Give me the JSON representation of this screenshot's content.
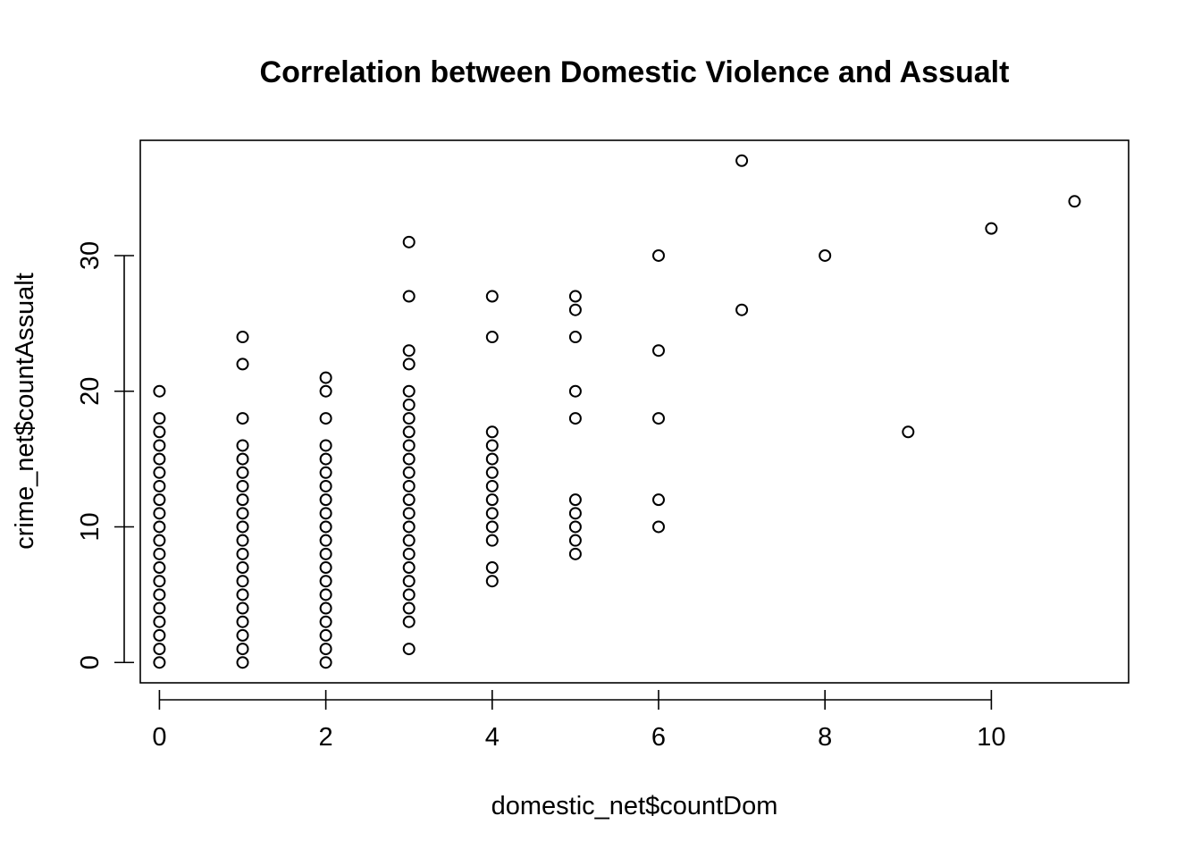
{
  "chart_data": {
    "type": "scatter",
    "title": "Correlation between Domestic Violence and Assualt",
    "xlabel": "domestic_net$countDom",
    "ylabel": "crime_net$countAssualt",
    "xlim": [
      -0.23,
      11.65
    ],
    "ylim": [
      -1.5,
      38.5
    ],
    "xticks": [
      0,
      2,
      4,
      6,
      8,
      10
    ],
    "yticks": [
      0,
      10,
      20,
      30
    ],
    "grid": false,
    "legend": "none",
    "marker": "open-circle",
    "points": [
      [
        0,
        0
      ],
      [
        0,
        1
      ],
      [
        0,
        2
      ],
      [
        0,
        3
      ],
      [
        0,
        4
      ],
      [
        0,
        5
      ],
      [
        0,
        6
      ],
      [
        0,
        7
      ],
      [
        0,
        8
      ],
      [
        0,
        9
      ],
      [
        0,
        10
      ],
      [
        0,
        11
      ],
      [
        0,
        12
      ],
      [
        0,
        13
      ],
      [
        0,
        14
      ],
      [
        0,
        15
      ],
      [
        0,
        16
      ],
      [
        0,
        17
      ],
      [
        0,
        18
      ],
      [
        0,
        20
      ],
      [
        1,
        0
      ],
      [
        1,
        1
      ],
      [
        1,
        2
      ],
      [
        1,
        3
      ],
      [
        1,
        4
      ],
      [
        1,
        5
      ],
      [
        1,
        6
      ],
      [
        1,
        7
      ],
      [
        1,
        8
      ],
      [
        1,
        9
      ],
      [
        1,
        10
      ],
      [
        1,
        11
      ],
      [
        1,
        12
      ],
      [
        1,
        13
      ],
      [
        1,
        14
      ],
      [
        1,
        15
      ],
      [
        1,
        16
      ],
      [
        1,
        18
      ],
      [
        1,
        22
      ],
      [
        1,
        24
      ],
      [
        2,
        0
      ],
      [
        2,
        1
      ],
      [
        2,
        2
      ],
      [
        2,
        3
      ],
      [
        2,
        4
      ],
      [
        2,
        5
      ],
      [
        2,
        6
      ],
      [
        2,
        7
      ],
      [
        2,
        8
      ],
      [
        2,
        9
      ],
      [
        2,
        10
      ],
      [
        2,
        11
      ],
      [
        2,
        12
      ],
      [
        2,
        13
      ],
      [
        2,
        14
      ],
      [
        2,
        15
      ],
      [
        2,
        16
      ],
      [
        2,
        18
      ],
      [
        2,
        20
      ],
      [
        2,
        21
      ],
      [
        3,
        1
      ],
      [
        3,
        3
      ],
      [
        3,
        4
      ],
      [
        3,
        5
      ],
      [
        3,
        6
      ],
      [
        3,
        7
      ],
      [
        3,
        8
      ],
      [
        3,
        9
      ],
      [
        3,
        10
      ],
      [
        3,
        11
      ],
      [
        3,
        12
      ],
      [
        3,
        13
      ],
      [
        3,
        14
      ],
      [
        3,
        15
      ],
      [
        3,
        16
      ],
      [
        3,
        17
      ],
      [
        3,
        18
      ],
      [
        3,
        19
      ],
      [
        3,
        20
      ],
      [
        3,
        22
      ],
      [
        3,
        23
      ],
      [
        3,
        27
      ],
      [
        3,
        31
      ],
      [
        4,
        6
      ],
      [
        4,
        7
      ],
      [
        4,
        9
      ],
      [
        4,
        10
      ],
      [
        4,
        11
      ],
      [
        4,
        12
      ],
      [
        4,
        13
      ],
      [
        4,
        14
      ],
      [
        4,
        15
      ],
      [
        4,
        16
      ],
      [
        4,
        17
      ],
      [
        4,
        24
      ],
      [
        4,
        27
      ],
      [
        5,
        8
      ],
      [
        5,
        9
      ],
      [
        5,
        10
      ],
      [
        5,
        11
      ],
      [
        5,
        12
      ],
      [
        5,
        18
      ],
      [
        5,
        20
      ],
      [
        5,
        24
      ],
      [
        5,
        26
      ],
      [
        5,
        27
      ],
      [
        6,
        10
      ],
      [
        6,
        12
      ],
      [
        6,
        18
      ],
      [
        6,
        23
      ],
      [
        6,
        30
      ],
      [
        7,
        26
      ],
      [
        7,
        37
      ],
      [
        8,
        30
      ],
      [
        9,
        17
      ],
      [
        10,
        32
      ],
      [
        11,
        34
      ]
    ]
  }
}
